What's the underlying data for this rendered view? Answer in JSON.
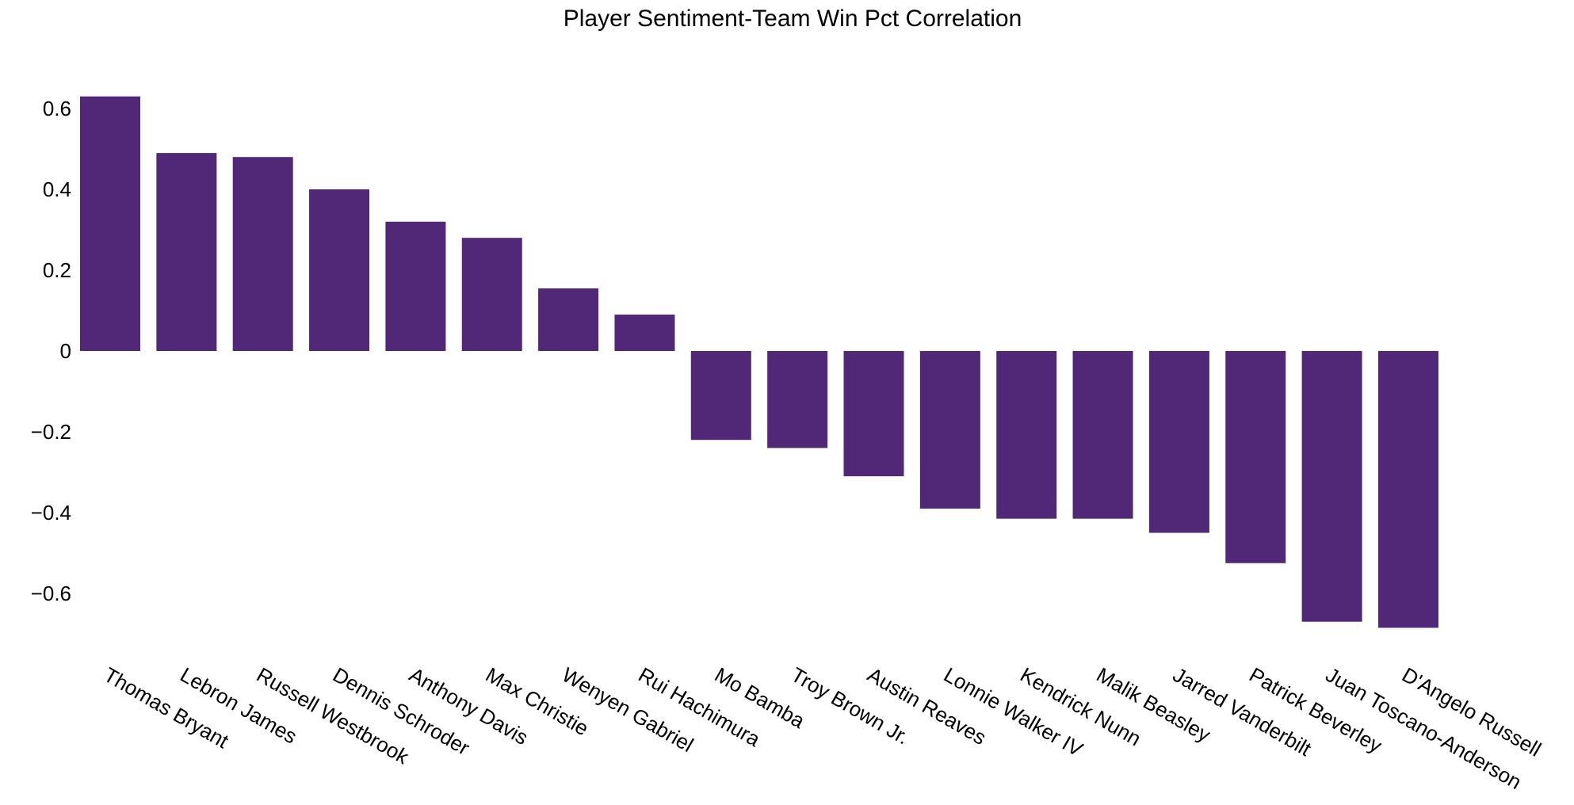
{
  "chart_data": {
    "type": "bar",
    "title": "Player Sentiment-Team Win Pct Correlation",
    "xlabel": "",
    "ylabel": "",
    "categories": [
      "Thomas Bryant",
      "Lebron James",
      "Russell Westbrook",
      "Dennis Schroder",
      "Anthony Davis",
      "Max Christie",
      "Wenyen Gabriel",
      "Rui Hachimura",
      "Mo Bamba",
      "Troy Brown Jr.",
      "Austin Reaves",
      "Lonnie Walker IV",
      "Kendrick Nunn",
      "Malik Beasley",
      "Jarred Vanderbilt",
      "Patrick Beverley",
      "Juan Toscano-Anderson",
      "D'Angelo Russell"
    ],
    "values": [
      0.63,
      0.49,
      0.48,
      0.4,
      0.32,
      0.28,
      0.155,
      0.09,
      -0.22,
      -0.24,
      -0.31,
      -0.39,
      -0.415,
      -0.415,
      -0.45,
      -0.525,
      -0.67,
      -0.685
    ],
    "ylim": [
      -0.75,
      0.7
    ],
    "yticks": [
      0.6,
      0.4,
      0.2,
      0,
      -0.2,
      -0.4,
      -0.6
    ],
    "ytick_labels": [
      "0.6",
      "0.4",
      "0.2",
      "0",
      "−0.2",
      "−0.4",
      "−0.6"
    ],
    "bar_color": "#512878",
    "grid": false,
    "legend": "none"
  }
}
